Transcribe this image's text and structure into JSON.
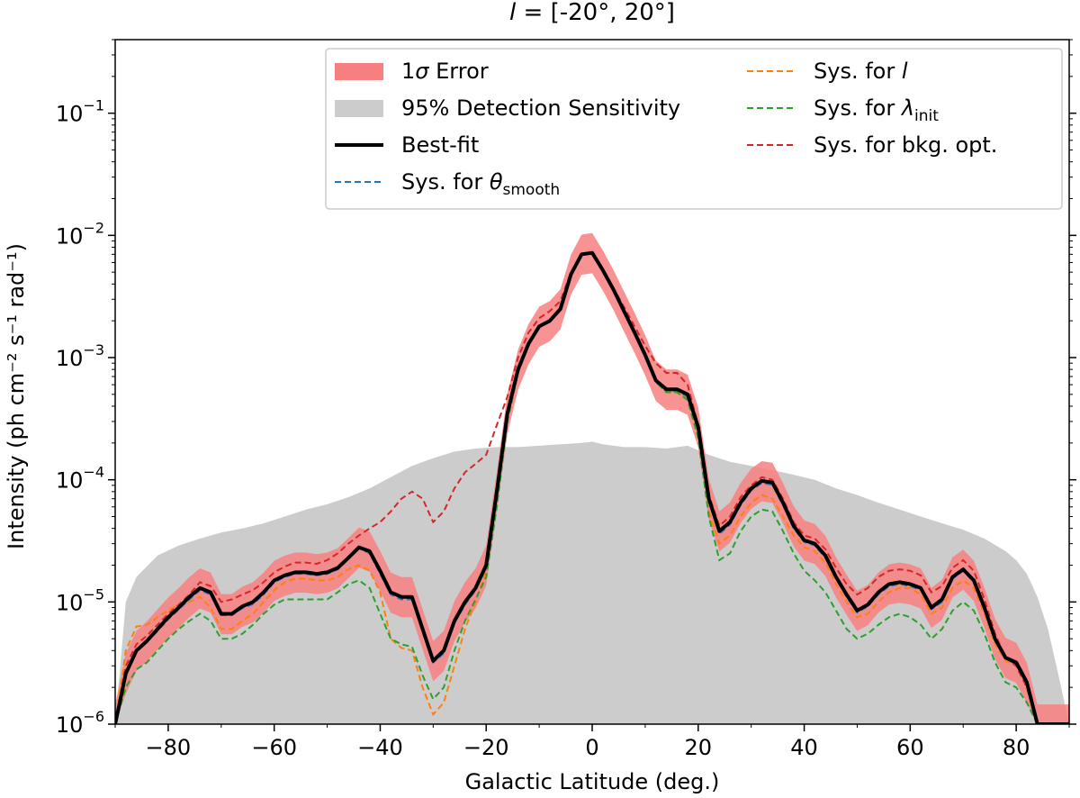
{
  "chart_data": {
    "type": "line",
    "title": {
      "var": "l",
      "rest": " = [-20°, 20°]"
    },
    "xlabel": "Galactic Latitude (deg.)",
    "ylabel": "Intensity (ph cm⁻² s⁻¹ rad⁻¹)",
    "xlim": [
      -90,
      90
    ],
    "ylim": [
      1e-06,
      0.4
    ],
    "yscale": "log",
    "xticks": [
      -80,
      -60,
      -40,
      -20,
      0,
      20,
      40,
      60,
      80
    ],
    "xtick_labels": [
      "−80",
      "−60",
      "−40",
      "−20",
      "0",
      "20",
      "40",
      "60",
      "80"
    ],
    "yticks": [
      {
        "mant": "10",
        "exp": "−6",
        "value": 1e-06
      },
      {
        "mant": "10",
        "exp": "−5",
        "value": 1e-05
      },
      {
        "mant": "10",
        "exp": "−4",
        "value": 0.0001
      },
      {
        "mant": "10",
        "exp": "−3",
        "value": 0.001
      },
      {
        "mant": "10",
        "exp": "−2",
        "value": 0.01
      },
      {
        "mant": "10",
        "exp": "−1",
        "value": 0.1
      }
    ],
    "grid": false,
    "legend_position": "top-center",
    "legend": [
      {
        "key": "err",
        "kind": "patch",
        "color": "#f87f7f",
        "parts": [
          {
            "t": "1"
          },
          {
            "t": "σ",
            "i": true
          },
          {
            "t": " Error"
          }
        ]
      },
      {
        "key": "sens",
        "kind": "patch",
        "color": "#cccccc",
        "parts": [
          {
            "t": "95% Detection Sensitivity"
          }
        ]
      },
      {
        "key": "best",
        "kind": "line",
        "color": "#000000",
        "parts": [
          {
            "t": "Best-fit"
          }
        ]
      },
      {
        "key": "sys_theta",
        "kind": "dash",
        "color": "#1f77b4",
        "parts": [
          {
            "t": "Sys. for "
          },
          {
            "t": "θ",
            "i": true
          },
          {
            "t": "smooth",
            "sub": true
          }
        ]
      },
      {
        "key": "sys_l",
        "kind": "dash",
        "color": "#ff7f0e",
        "parts": [
          {
            "t": "Sys. for "
          },
          {
            "t": "l",
            "i": true
          }
        ]
      },
      {
        "key": "sys_lambda",
        "kind": "dash",
        "color": "#2ca02c",
        "parts": [
          {
            "t": "Sys. for "
          },
          {
            "t": "λ",
            "i": true
          },
          {
            "t": "init",
            "sub": true
          }
        ]
      },
      {
        "key": "sys_bkg",
        "kind": "dash",
        "color": "#d62728",
        "parts": [
          {
            "t": "Sys. for bkg. opt."
          }
        ]
      }
    ],
    "sensitivity": {
      "x": [
        -90,
        -88,
        -86,
        -82,
        -78,
        -74,
        -70,
        -66,
        -62,
        -58,
        -54,
        -50,
        -46,
        -42,
        -38,
        -34,
        -30,
        -26,
        -22,
        -18,
        -14,
        -10,
        -6,
        -2,
        0,
        2,
        6,
        10,
        14,
        18,
        22,
        26,
        30,
        34,
        38,
        42,
        46,
        50,
        54,
        58,
        62,
        66,
        70,
        74,
        78,
        80,
        82,
        84,
        86,
        88,
        90
      ],
      "y": [
        1e-06,
        1e-05,
        1.6e-05,
        2.4e-05,
        2.9e-05,
        3.3e-05,
        3.7e-05,
        4e-05,
        4.4e-05,
        5e-05,
        5.7e-05,
        6.3e-05,
        7.2e-05,
        8.5e-05,
        0.000105,
        0.00013,
        0.00015,
        0.00017,
        0.00018,
        0.000185,
        0.000185,
        0.00019,
        0.000195,
        0.0002,
        0.000205,
        0.000195,
        0.000185,
        0.000185,
        0.00018,
        0.00019,
        0.00016,
        0.00014,
        0.00013,
        0.00012,
        0.00011,
        0.0001,
        8.5e-05,
        7.5e-05,
        6.5e-05,
        5.7e-05,
        5e-05,
        4.4e-05,
        3.9e-05,
        3.3e-05,
        2.6e-05,
        2.2e-05,
        1.7e-05,
        1.1e-05,
        6e-06,
        2.5e-06,
        1e-06
      ]
    },
    "x": [
      -90,
      -88,
      -86,
      -84,
      -82,
      -80,
      -78,
      -76,
      -74,
      -72,
      -70,
      -68,
      -66,
      -64,
      -62,
      -60,
      -58,
      -56,
      -54,
      -52,
      -50,
      -48,
      -46,
      -44,
      -42,
      -40,
      -38,
      -36,
      -34,
      -32,
      -30,
      -28,
      -26,
      -24,
      -22,
      -20,
      -18,
      -16,
      -14,
      -12,
      -10,
      -8,
      -6,
      -4,
      -2,
      0,
      2,
      4,
      6,
      8,
      10,
      12,
      14,
      16,
      18,
      20,
      22,
      24,
      26,
      28,
      30,
      32,
      34,
      36,
      38,
      40,
      42,
      44,
      46,
      48,
      50,
      52,
      54,
      56,
      58,
      60,
      62,
      64,
      66,
      68,
      70,
      72,
      74,
      76,
      78,
      80,
      82,
      84,
      86,
      88,
      90
    ],
    "best_fit": [
      1e-06,
      2.6e-06,
      4e-06,
      4.8e-06,
      6e-06,
      7.5e-06,
      9e-06,
      1.1e-05,
      1.3e-05,
      1.2e-05,
      8e-06,
      8e-06,
      9.2e-06,
      1e-05,
      1.2e-05,
      1.5e-05,
      1.65e-05,
      1.75e-05,
      1.75e-05,
      1.7e-05,
      1.75e-05,
      1.9e-05,
      2.3e-05,
      2.8e-05,
      2.6e-05,
      1.8e-05,
      1.2e-05,
      1.1e-05,
      1.1e-05,
      6e-06,
      3.3e-06,
      4e-06,
      7e-06,
      1e-05,
      1.3e-05,
      2e-05,
      8e-05,
      0.00035,
      0.0008,
      0.0013,
      0.0018,
      0.002,
      0.0025,
      0.0048,
      0.007,
      0.0072,
      0.0052,
      0.0036,
      0.0024,
      0.0016,
      0.00105,
      0.00065,
      0.00055,
      0.00055,
      0.0005,
      0.00027,
      7e-05,
      3.8e-05,
      4.5e-05,
      6.5e-05,
      8.5e-05,
      9.8e-05,
      9.5e-05,
      6.5e-05,
      4.2e-05,
      3.2e-05,
      3e-05,
      2.4e-05,
      1.6e-05,
      1.15e-05,
      8.5e-06,
      9.5e-06,
      1.2e-05,
      1.4e-05,
      1.45e-05,
      1.4e-05,
      1.3e-05,
      9e-06,
      1.05e-05,
      1.6e-05,
      1.85e-05,
      1.5e-05,
      9e-06,
      5e-06,
      3.5e-06,
      3.2e-06,
      2.2e-06,
      1e-06,
      1e-06,
      1e-06,
      1e-06
    ],
    "error_scale": {
      "upper": 1.45,
      "lower": 0.68
    },
    "systematics": {
      "sys_theta": [
        1e-06,
        2.5e-06,
        3.9e-06,
        4.7e-06,
        5.8e-06,
        7.2e-06,
        8.7e-06,
        1.05e-05,
        1.25e-05,
        1.15e-05,
        7.8e-06,
        7.8e-06,
        8.9e-06,
        9.6e-06,
        1.15e-05,
        1.45e-05,
        1.6e-05,
        1.7e-05,
        1.7e-05,
        1.65e-05,
        1.7e-05,
        1.85e-05,
        2.25e-05,
        2.75e-05,
        2.5e-05,
        1.7e-05,
        1.15e-05,
        1.05e-05,
        1.05e-05,
        5.7e-06,
        3.2e-06,
        3.8e-06,
        6.7e-06,
        9.5e-06,
        1.25e-05,
        1.9e-05,
        7.8e-05,
        0.00034,
        0.00079,
        0.0013,
        0.0018,
        0.002,
        0.0025,
        0.0048,
        0.007,
        0.0072,
        0.0052,
        0.0036,
        0.0024,
        0.0016,
        0.001,
        0.00063,
        0.00053,
        0.00053,
        0.00048,
        0.00026,
        6.7e-05,
        3.6e-05,
        4.3e-05,
        6.2e-05,
        8.2e-05,
        9.4e-05,
        9.1e-05,
        6.2e-05,
        4e-05,
        3.1e-05,
        2.9e-05,
        2.3e-05,
        1.55e-05,
        1.1e-05,
        8.2e-06,
        9.2e-06,
        1.15e-05,
        1.35e-05,
        1.4e-05,
        1.35e-05,
        1.25e-05,
        8.7e-06,
        1e-05,
        1.55e-05,
        1.8e-05,
        1.45e-05,
        8.7e-06,
        4.8e-06,
        3.4e-06,
        3.1e-06,
        2.1e-06,
        1e-06,
        1e-06,
        1e-06,
        1e-06
      ],
      "sys_l": [
        1e-06,
        4e-06,
        6.3e-06,
        6.5e-06,
        7.5e-06,
        8.5e-06,
        9.5e-06,
        1e-05,
        1.1e-05,
        9e-06,
        6e-06,
        6e-06,
        7e-06,
        8e-06,
        1e-05,
        1.25e-05,
        1.45e-05,
        1.55e-05,
        1.55e-05,
        1.5e-05,
        1.5e-05,
        1.6e-05,
        1.85e-05,
        2e-05,
        1.8e-05,
        1.2e-05,
        5e-06,
        4.2e-06,
        4e-06,
        2e-06,
        1.2e-06,
        1.5e-06,
        3e-06,
        6e-06,
        1e-05,
        1.8e-05,
        7e-05,
        0.00032,
        0.0008,
        0.0013,
        0.0018,
        0.002,
        0.0025,
        0.0048,
        0.007,
        0.0072,
        0.0052,
        0.0036,
        0.0024,
        0.0016,
        0.00105,
        0.00065,
        0.00053,
        0.00052,
        0.00046,
        0.00023,
        5.5e-05,
        3e-05,
        3.5e-05,
        5e-05,
        6.5e-05,
        7.5e-05,
        7e-05,
        5e-05,
        3.5e-05,
        2.8e-05,
        2.6e-05,
        2.1e-05,
        1.4e-05,
        1e-05,
        7.5e-06,
        8e-06,
        1e-05,
        1.2e-05,
        1.3e-05,
        1.3e-05,
        1.15e-05,
        8e-06,
        9e-06,
        1.3e-05,
        1.5e-05,
        1.3e-05,
        8e-06,
        4.5e-06,
        3.3e-06,
        3e-06,
        2.2e-06,
        1e-06,
        1e-06,
        1e-06,
        1e-06
      ],
      "sys_lambda": [
        1e-06,
        2e-06,
        2.8e-06,
        3.2e-06,
        4e-06,
        5e-06,
        6e-06,
        7e-06,
        8e-06,
        7e-06,
        5e-06,
        5e-06,
        5.5e-06,
        6.5e-06,
        8e-06,
        9.5e-06,
        1.05e-05,
        1.05e-05,
        1.05e-05,
        1.05e-05,
        1.05e-05,
        1.2e-05,
        1.4e-05,
        1.5e-05,
        1.3e-05,
        8e-06,
        5e-06,
        4.5e-06,
        4.3e-06,
        2.5e-06,
        1.6e-06,
        2e-06,
        4e-06,
        7e-06,
        1.05e-05,
        1.6e-05,
        6e-05,
        0.0003,
        0.00075,
        0.0013,
        0.0018,
        0.002,
        0.0025,
        0.0048,
        0.007,
        0.0072,
        0.0052,
        0.0036,
        0.0024,
        0.0016,
        0.00105,
        0.00063,
        0.00052,
        0.00052,
        0.00045,
        0.00022,
        5e-05,
        2.2e-05,
        2.5e-05,
        3.8e-05,
        5e-05,
        5.7e-05,
        5.5e-05,
        3.8e-05,
        2.5e-05,
        1.8e-05,
        1.5e-05,
        1.2e-05,
        8.5e-06,
        6e-06,
        5e-06,
        5.5e-06,
        6.5e-06,
        7.5e-06,
        8e-06,
        7.5e-06,
        6.5e-06,
        5e-06,
        6e-06,
        8.5e-06,
        1e-05,
        8.5e-06,
        5.5e-06,
        3.2e-06,
        2.2e-06,
        2e-06,
        1.5e-06,
        1e-06,
        1e-06,
        1e-06,
        1e-06
      ],
      "sys_bkg": [
        1e-06,
        3e-06,
        4.5e-06,
        5.3e-06,
        6.5e-06,
        8e-06,
        9.5e-06,
        1.15e-05,
        1.45e-05,
        1.35e-05,
        1e-05,
        1.05e-05,
        1.15e-05,
        1.25e-05,
        1.45e-05,
        1.75e-05,
        1.95e-05,
        2.1e-05,
        2.1e-05,
        2.05e-05,
        2.2e-05,
        2.5e-05,
        3e-05,
        3.5e-05,
        4e-05,
        4.5e-05,
        5.5e-05,
        7e-05,
        8e-05,
        7e-05,
        4.5e-05,
        5.5e-05,
        8.5e-05,
        0.000115,
        0.000135,
        0.00016,
        0.00028,
        0.00048,
        0.001,
        0.0016,
        0.0021,
        0.0024,
        0.0029,
        0.005,
        0.007,
        0.0072,
        0.0053,
        0.0037,
        0.0026,
        0.0018,
        0.00125,
        0.0009,
        0.00075,
        0.00075,
        0.0006,
        0.00028,
        7.5e-05,
        4.2e-05,
        5e-05,
        7.2e-05,
        9e-05,
        0.000105,
        0.0001,
        7e-05,
        4.5e-05,
        3.5e-05,
        3.3e-05,
        2.7e-05,
        1.9e-05,
        1.4e-05,
        1.15e-05,
        1.3e-05,
        1.6e-05,
        1.8e-05,
        1.85e-05,
        1.8e-05,
        1.65e-05,
        1.2e-05,
        1.35e-05,
        1.9e-05,
        2.2e-05,
        1.8e-05,
        1.05e-05,
        5.5e-06,
        3.5e-06,
        3e-06,
        2e-06,
        1e-06,
        1e-06,
        1e-06,
        1e-06
      ]
    }
  }
}
